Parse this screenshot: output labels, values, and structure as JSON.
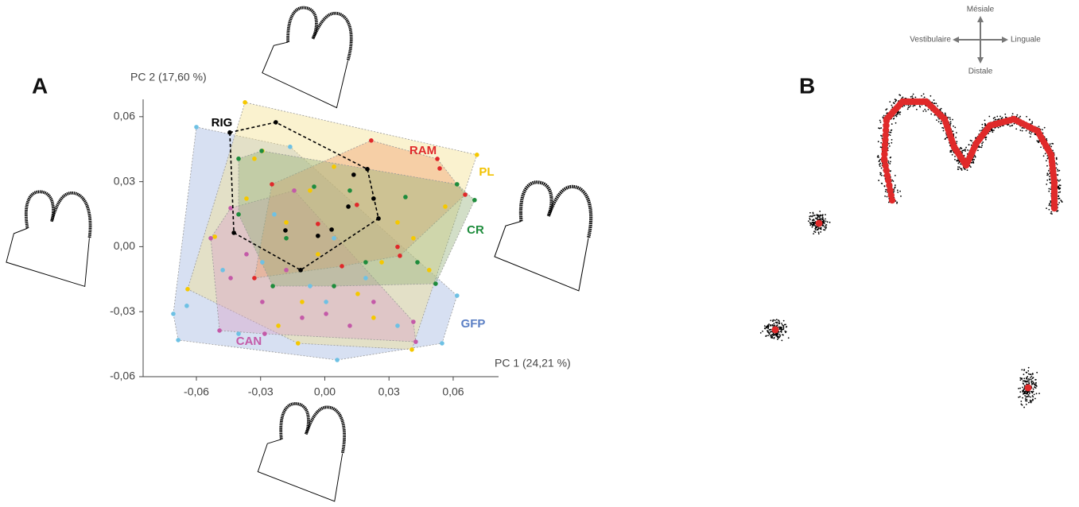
{
  "panel_labels": [
    "A",
    "B"
  ],
  "compass": {
    "top": "Mésiale",
    "left": "Vestibulaire",
    "right": "Linguale",
    "bottom": "Distale"
  },
  "chart_data": {
    "type": "scatter",
    "xlabel": "PC 1 (24,21 %)",
    "ylabel": "PC 2 (17,60 %)",
    "xlim": [
      -0.0849,
      0.0812
    ],
    "ylim": [
      -0.06,
      0.068
    ],
    "xticks": [
      {
        "value": -0.06,
        "label": "-0,06"
      },
      {
        "value": -0.03,
        "label": "-0,03"
      },
      {
        "value": 0,
        "label": "0,00"
      },
      {
        "value": 0.03,
        "label": "0,03"
      },
      {
        "value": 0.06,
        "label": "0,06"
      }
    ],
    "yticks": [
      {
        "value": -0.06,
        "label": "-0,06"
      },
      {
        "value": -0.03,
        "label": "-0,03"
      },
      {
        "value": 0,
        "label": "0,00"
      },
      {
        "value": 0.03,
        "label": "0,03"
      },
      {
        "value": 0.06,
        "label": "0,06"
      }
    ],
    "convex_hulls": true,
    "series": [
      {
        "name": "GFP",
        "color": "#6ec1e4",
        "hull_color": "#9fb6e0",
        "label_color": "#5b7fc4",
        "x": [
          -0.06,
          -0.0708,
          -0.0685,
          0.0058,
          0.0548,
          0.0618,
          -0.0162,
          -0.0645,
          -0.0477,
          -0.0292,
          -0.0069,
          0.0006,
          0.0191,
          0.034,
          -0.0403,
          0.0043,
          -0.0236
        ],
        "values": [
          0.0552,
          -0.031,
          -0.0431,
          -0.0523,
          -0.0446,
          -0.0226,
          0.0461,
          -0.0273,
          -0.0108,
          -0.0072,
          -0.0182,
          -0.0255,
          -0.0145,
          -0.0365,
          -0.0402,
          0.0039,
          0.0149
        ]
      },
      {
        "name": "PL",
        "color": "#f5c800",
        "hull_color": "#f4e08c",
        "label_color": "#f2c200",
        "x": [
          -0.0373,
          0.0711,
          0.0407,
          -0.0125,
          -0.0641,
          -0.0514,
          -0.0292,
          -0.0069,
          0.0043,
          -0.018,
          0.0266,
          0.0414,
          0.0154,
          -0.0106,
          0.0488,
          -0.0366,
          -0.0032,
          0.0563,
          0.0228,
          -0.0217,
          0.034,
          -0.0329
        ],
        "values": [
          0.0666,
          0.0424,
          -0.0475,
          -0.0446,
          -0.0196,
          0.0046,
          0.0442,
          0.0259,
          0.0369,
          0.0112,
          -0.0072,
          0.0039,
          -0.0218,
          -0.0255,
          -0.0108,
          0.0222,
          -0.0035,
          0.0185,
          -0.0328,
          -0.0365,
          0.0112,
          0.0406
        ]
      },
      {
        "name": "CAN",
        "color": "#c45aa8",
        "hull_color": "#d8a2c8",
        "label_color": "#c45aa8",
        "x": [
          -0.0492,
          -0.0281,
          0.0425,
          0.0414,
          -0.044,
          -0.0533,
          -0.0143,
          -0.044,
          -0.0292,
          -0.0106,
          0.0117,
          0.0228,
          -0.0366,
          -0.018,
          0.0006
        ],
        "values": [
          -0.0387,
          -0.0402,
          -0.0439,
          -0.0347,
          0.0178,
          0.0039,
          0.0259,
          -0.0145,
          -0.0255,
          -0.0328,
          -0.0365,
          -0.0255,
          -0.0035,
          -0.0108,
          -0.031
        ]
      },
      {
        "name": "RAM",
        "color": "#e0282a",
        "hull_color": "#f0a06e",
        "label_color": "#e0282a",
        "x": [
          0.0217,
          0.0656,
          0.0526,
          0.0537,
          -0.0329,
          0.015,
          -0.0032,
          0.0351,
          0.008,
          -0.0247,
          0.034
        ],
        "values": [
          0.049,
          0.024,
          0.0405,
          0.0361,
          -0.0145,
          0.0193,
          0.0105,
          -0.0042,
          -0.009,
          0.0288,
          -0.0001
        ]
      },
      {
        "name": "CR",
        "color": "#1e8c3c",
        "hull_color": "#93b07a",
        "label_color": "#1e8c3c",
        "x": [
          -0.0403,
          -0.0295,
          0.0618,
          0.07,
          0.0518,
          -0.0243,
          0.0117,
          0.0377,
          0.0191,
          -0.018,
          0.0043,
          -0.005,
          0.0433,
          -0.0403
        ],
        "values": [
          0.0406,
          0.0442,
          0.0288,
          0.0215,
          -0.0171,
          -0.0182,
          0.0259,
          0.0229,
          -0.0072,
          0.0039,
          -0.0182,
          0.0277,
          -0.0072,
          0.0149
        ]
      },
      {
        "name": "RIG",
        "color": "#000000",
        "hull_color": "#000000",
        "label_color": "#000000",
        "dashed": true,
        "x": [
          -0.0444,
          -0.0229,
          0.0199,
          0.0251,
          -0.0113,
          -0.0425,
          0.0135,
          0.011,
          0.0032,
          -0.0184,
          -0.0032,
          0.0228
        ],
        "values": [
          0.0527,
          0.0574,
          0.0358,
          0.013,
          -0.0108,
          0.0064,
          0.0332,
          0.0185,
          0.0079,
          0.0075,
          0.005,
          0.0222
        ]
      }
    ]
  }
}
